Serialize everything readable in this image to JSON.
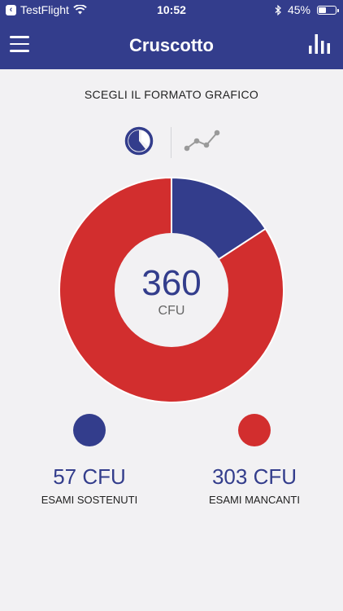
{
  "status_bar": {
    "carrier": "TestFlight",
    "time": "10:52",
    "battery": "45%",
    "battery_level": 0.45
  },
  "nav": {
    "title": "Cruscotto"
  },
  "section_title": "SCEGLI IL FORMATO GRAFICO",
  "chart_data": {
    "type": "pie",
    "total": 360,
    "total_label": "360",
    "unit": "CFU",
    "slices": [
      {
        "value": 57,
        "color": "#333d8c"
      },
      {
        "value": 303,
        "color": "#d22e2e"
      }
    ]
  },
  "legend": [
    {
      "value": "57 CFU",
      "label": "ESAMI SOSTENUTI",
      "color": "#333d8c"
    },
    {
      "value": "303 CFU",
      "label": "ESAMI MANCANTI",
      "color": "#d22e2e"
    }
  ],
  "colors": {
    "brand": "#333d8c",
    "accent_red": "#d22e2e",
    "background": "#f2f1f3"
  },
  "icons": {
    "menu": "hamburger-menu-icon",
    "chart": "bar-chart-icon",
    "pie": "pie-chart-icon",
    "line": "line-chart-icon"
  }
}
